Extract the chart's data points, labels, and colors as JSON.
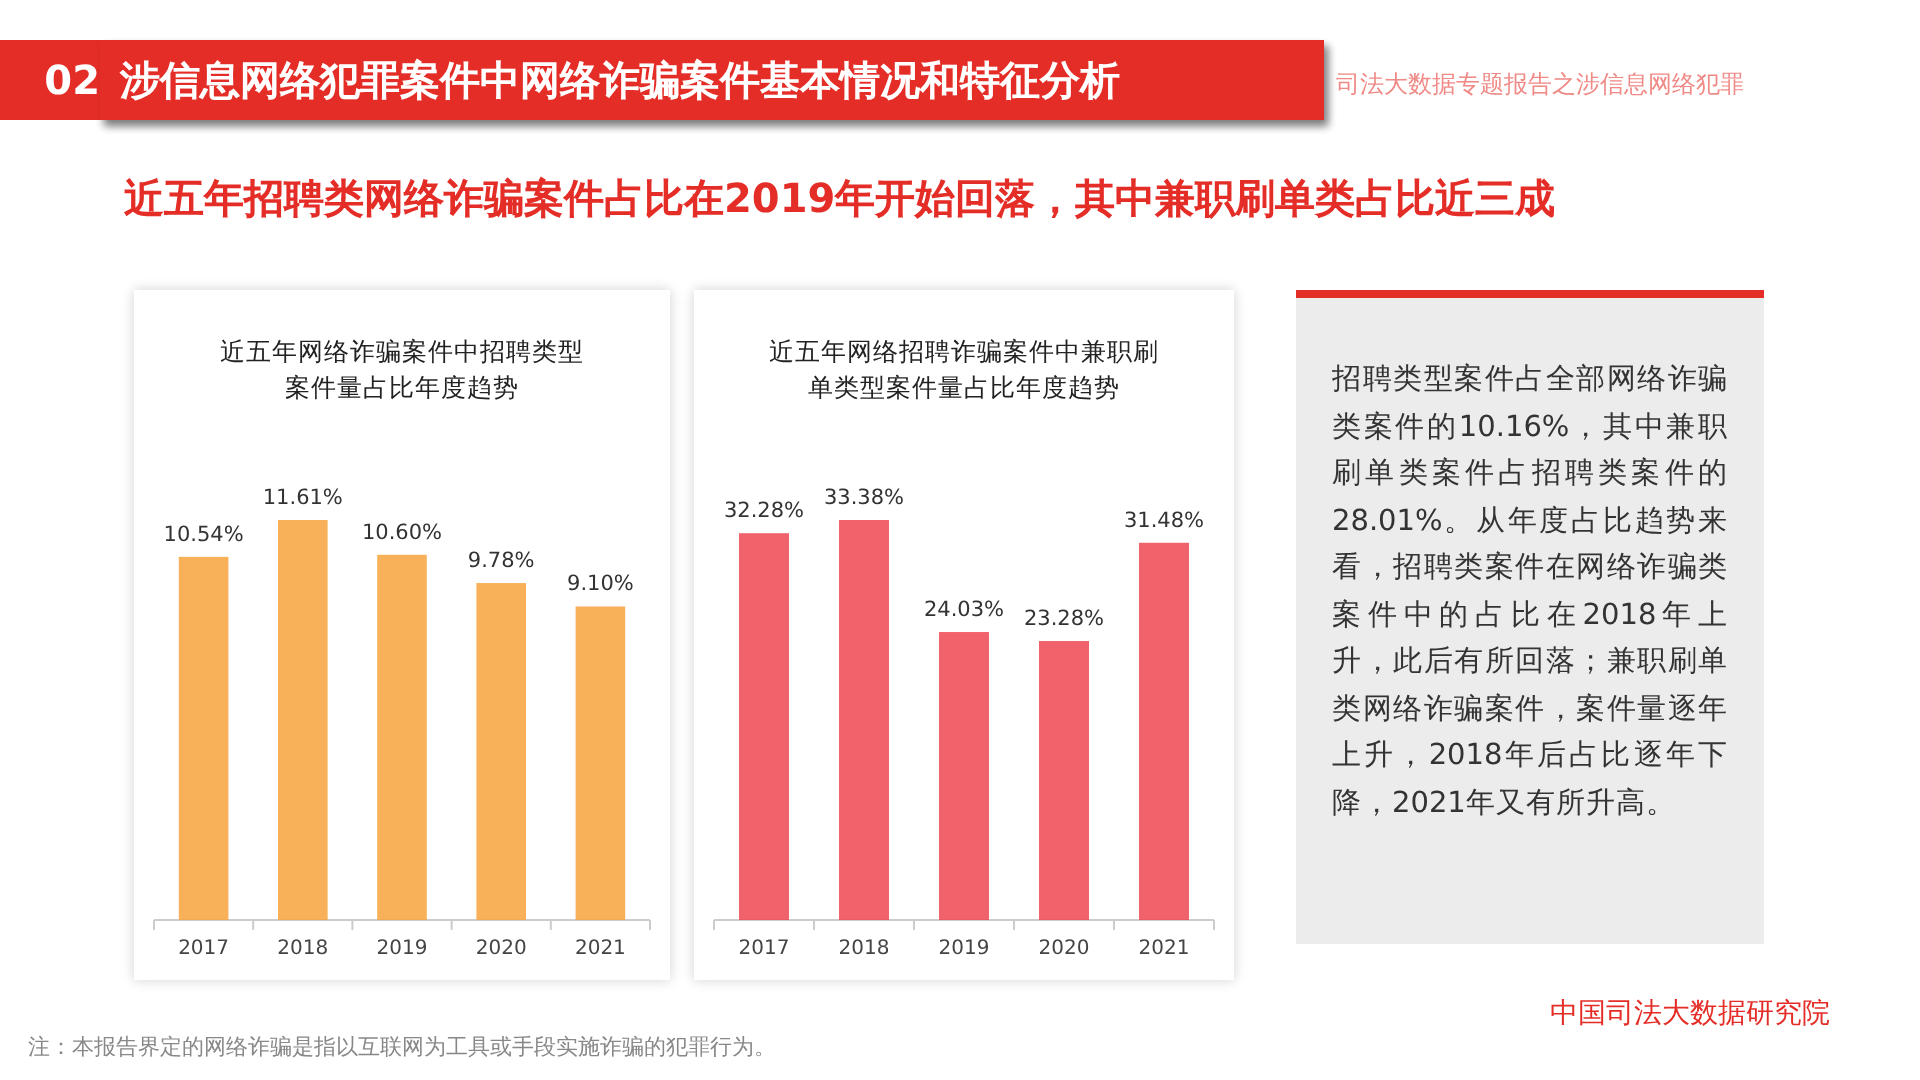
{
  "chart_data": [
    {
      "type": "bar",
      "title": "近五年网络诈骗案件中招聘类型案件量占比年度趋势",
      "categories": [
        "2017",
        "2018",
        "2019",
        "2020",
        "2021"
      ],
      "series": [
        {
          "color": "#f7a23c",
          "values": [
            10.54,
            11.61,
            10.6,
            9.78,
            9.1
          ],
          "value_labels": [
            "10.54%",
            "11.61%",
            "10.60%",
            "9.78%",
            "9.10%"
          ]
        }
      ]
    },
    {
      "type": "bar",
      "title": "近五年网络招聘诈骗案件中兼职刷单类型案件量占比年度趋势",
      "categories": [
        "2017",
        "2018",
        "2019",
        "2020",
        "2021"
      ],
      "series": [
        {
          "color": "#ee4650",
          "values": [
            32.28,
            33.38,
            24.03,
            23.28,
            31.48
          ],
          "value_labels": [
            "32.28%",
            "33.38%",
            "24.03%",
            "23.28%",
            "31.48%"
          ]
        }
      ]
    },
    {
      "type": "other",
      "annotations": [
        "02",
        "涉信息网络犯罪案件中网络诈骗案件基本情况和特征分析",
        "司法大数据专题报告之涉信息网络犯罪",
        "近五年招聘类网络诈骗案件占比在2019年开始回落，其中兼职刷单类占比近三成",
        "招聘类型案件占全部网络诈骗类案件的10.16%，其中兼职刷单类案件占招聘类案件的28.01%。从年度占比趋势来看，招聘类案件在网络诈骗类案件中的占比在2018年上升，此后有所回落；兼职刷单类网络诈骗案件，案件量逐年上升，2018年后占比逐年下降，2021年又有所升高。",
        "注：本报告界定的网络诈骗是指以互联网为工具或手段实施诈骗的犯罪行为。",
        "中国司法大数据研究院"
      ]
    }
  ]
}
